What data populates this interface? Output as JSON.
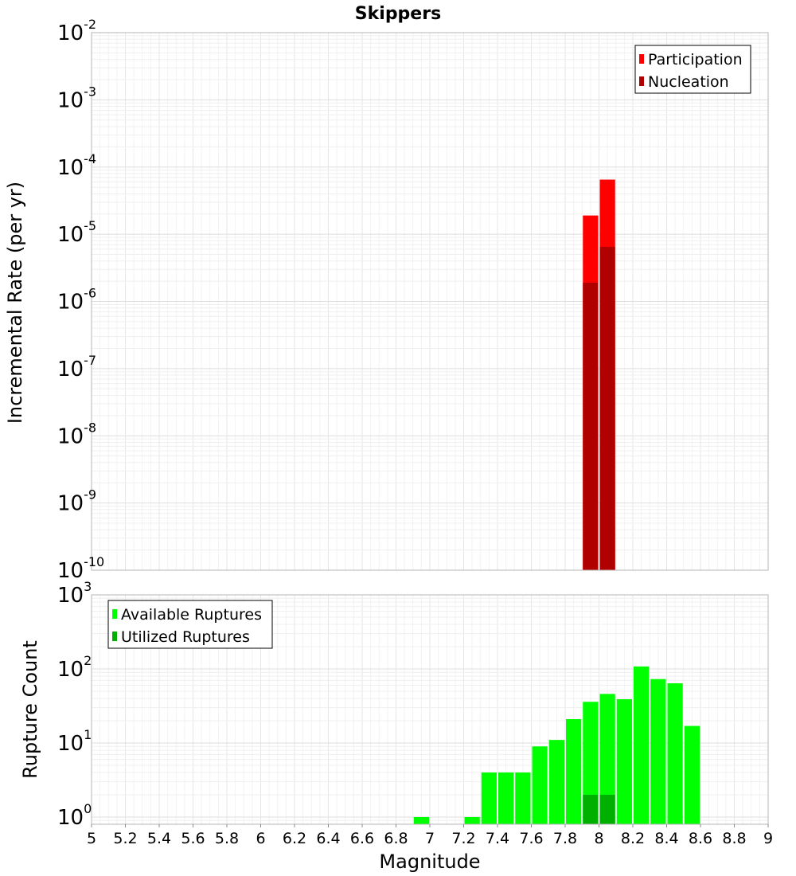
{
  "chart_data": [
    {
      "type": "bar",
      "title": "Skippers",
      "xlabel": "",
      "ylabel": "Incremental Rate (per yr)",
      "yscale": "log",
      "ylim": [
        1e-10,
        0.01
      ],
      "xlim": [
        5,
        9
      ],
      "ytick_exponents": [
        "-10",
        "-9",
        "-8",
        "-7",
        "-6",
        "-5",
        "-4",
        "-3",
        "-2"
      ],
      "legend": {
        "position": "top-right",
        "entries": [
          "Participation",
          "Nucleation"
        ]
      },
      "colors": {
        "Participation": "#ff0000",
        "Nucleation": "#b00000"
      },
      "grid": true,
      "series": [
        {
          "name": "Participation",
          "x": [
            7.95,
            8.05
          ],
          "values": [
            1.9e-05,
            6.5e-05
          ]
        },
        {
          "name": "Nucleation",
          "x": [
            7.95,
            8.05
          ],
          "values": [
            1.9e-06,
            6.5e-06
          ]
        }
      ]
    },
    {
      "type": "bar",
      "xlabel": "Magnitude",
      "ylabel": "Rupture Count",
      "yscale": "log",
      "ylim": [
        0.8,
        1000
      ],
      "xlim": [
        5,
        9
      ],
      "ytick_exponents": [
        "0",
        "1",
        "2",
        "3"
      ],
      "xticks": [
        "5",
        "5.2",
        "5.4",
        "5.6",
        "5.8",
        "6",
        "6.2",
        "6.4",
        "6.6",
        "6.8",
        "7",
        "7.2",
        "7.4",
        "7.6",
        "7.8",
        "8",
        "8.2",
        "8.4",
        "8.6",
        "8.8",
        "9"
      ],
      "legend": {
        "position": "top-left",
        "entries": [
          "Available Ruptures",
          "Utilized Ruptures"
        ]
      },
      "colors": {
        "Available Ruptures": "#00ff00",
        "Utilized Ruptures": "#00b000"
      },
      "grid": true,
      "series": [
        {
          "name": "Available Ruptures",
          "x": [
            6.95,
            7.25,
            7.35,
            7.45,
            7.55,
            7.65,
            7.75,
            7.85,
            7.95,
            8.05,
            8.15,
            8.25,
            8.35,
            8.45,
            8.55
          ],
          "values": [
            1,
            1,
            4,
            4,
            4,
            9,
            11,
            21,
            36,
            46,
            39,
            108,
            73,
            64,
            17
          ]
        },
        {
          "name": "Utilized Ruptures",
          "x": [
            7.95,
            8.05
          ],
          "values": [
            2,
            2
          ]
        }
      ]
    }
  ]
}
